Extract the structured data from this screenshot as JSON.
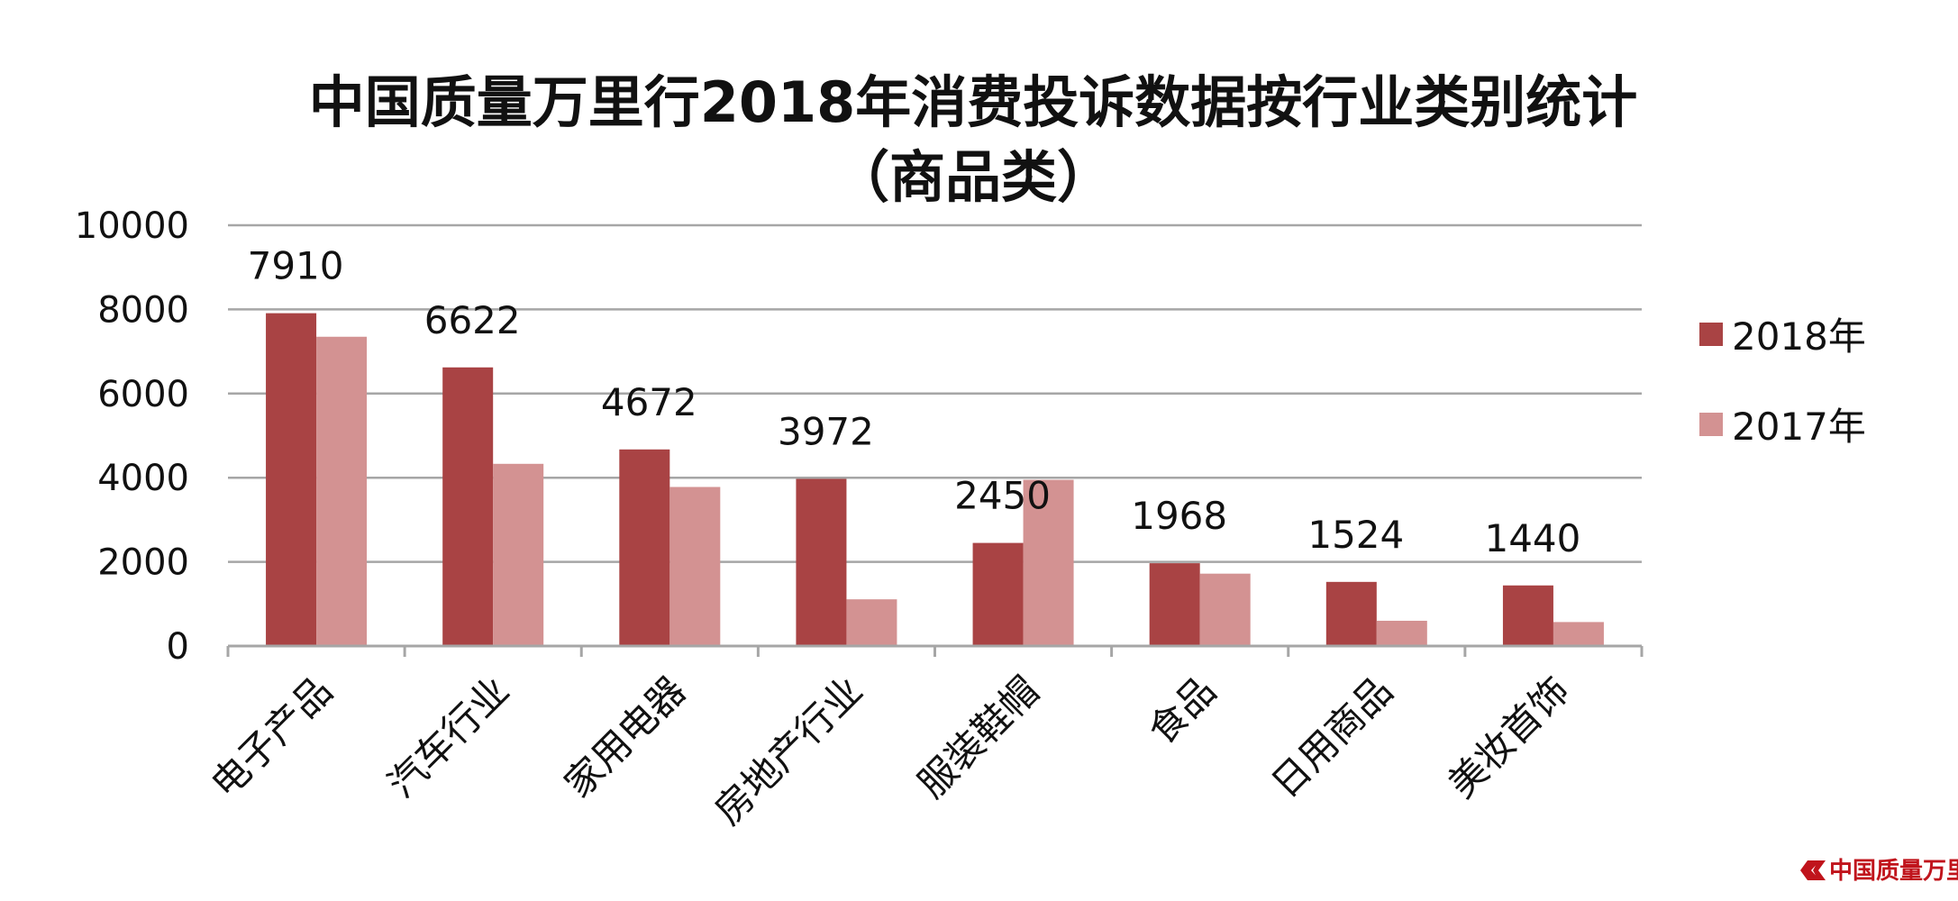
{
  "chart_data": {
    "type": "bar",
    "title": "中国质量万里行2018年消费投诉数据按行业类别统计",
    "subtitle": "（商品类）",
    "categories": [
      "电子产品",
      "汽车行业",
      "家用电器",
      "房地产行业",
      "服装鞋帽",
      "食品",
      "日用商品",
      "美妆首饰"
    ],
    "series": [
      {
        "name": "2018年",
        "color": "#a94344",
        "values": [
          7910,
          6622,
          4672,
          3972,
          2450,
          1968,
          1524,
          1440
        ]
      },
      {
        "name": "2017年",
        "color": "#d39292",
        "values": [
          7350,
          4330,
          3780,
          1110,
          3950,
          1720,
          600,
          570
        ]
      }
    ],
    "data_labels": [
      "7910",
      "6622",
      "4672",
      "3972",
      "2450",
      "1968",
      "1524",
      "1440"
    ],
    "yticks": [
      "0",
      "2000",
      "4000",
      "6000",
      "8000",
      "10000"
    ],
    "ylim": [
      0,
      10000
    ],
    "xlabel": "",
    "ylabel": "",
    "grid": true,
    "legend_position": "right"
  },
  "watermark": {
    "text": "中国质量万里行",
    "color": "#c0141c"
  }
}
